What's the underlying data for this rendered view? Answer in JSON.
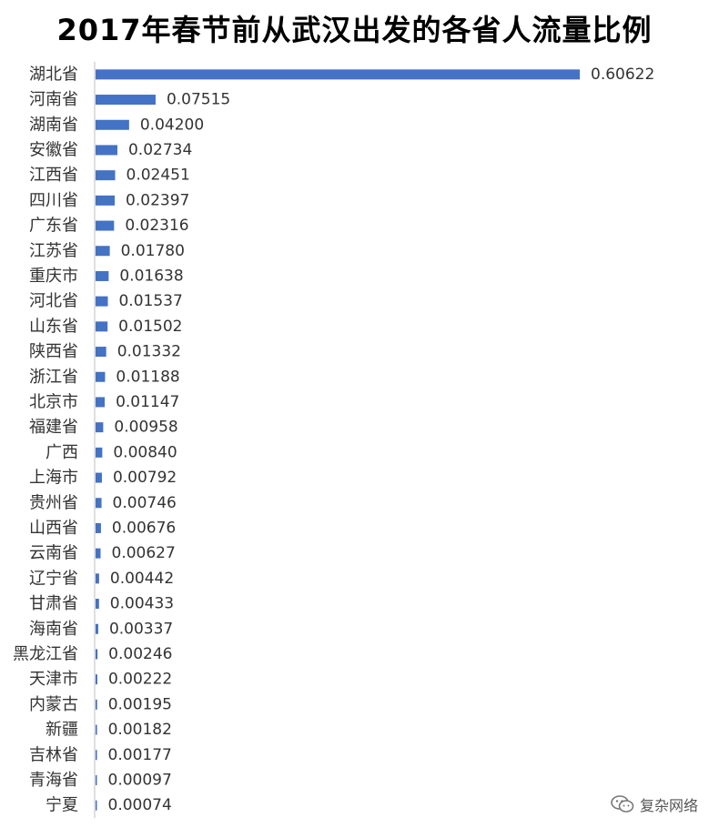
{
  "chart_data": {
    "type": "bar",
    "orientation": "horizontal",
    "title": "2017年春节前从武汉出发的各省人流量比例",
    "categories": [
      "湖北省",
      "河南省",
      "湖南省",
      "安徽省",
      "江西省",
      "四川省",
      "广东省",
      "江苏省",
      "重庆市",
      "河北省",
      "山东省",
      "陕西省",
      "浙江省",
      "北京市",
      "福建省",
      "广西",
      "上海市",
      "贵州省",
      "山西省",
      "云南省",
      "辽宁省",
      "甘肃省",
      "海南省",
      "黑龙江省",
      "天津市",
      "内蒙古",
      "新疆",
      "吉林省",
      "青海省",
      "宁夏"
    ],
    "values": [
      0.60622,
      0.07515,
      0.042,
      0.02734,
      0.02451,
      0.02397,
      0.02316,
      0.0178,
      0.01638,
      0.01537,
      0.01502,
      0.01332,
      0.01188,
      0.01147,
      0.00958,
      0.0084,
      0.00792,
      0.00746,
      0.00676,
      0.00627,
      0.00442,
      0.00433,
      0.00337,
      0.00246,
      0.00222,
      0.00195,
      0.00182,
      0.00177,
      0.00097,
      0.00074
    ],
    "value_labels": [
      "0.60622",
      "0.07515",
      "0.04200",
      "0.02734",
      "0.02451",
      "0.02397",
      "0.02316",
      "0.01780",
      "0.01638",
      "0.01537",
      "0.01502",
      "0.01332",
      "0.01188",
      "0.01147",
      "0.00958",
      "0.00840",
      "0.00792",
      "0.00746",
      "0.00676",
      "0.00627",
      "0.00442",
      "0.00433",
      "0.00337",
      "0.00246",
      "0.00222",
      "0.00195",
      "0.00182",
      "0.00177",
      "0.00097",
      "0.00074"
    ],
    "bar_color": "#4472c4",
    "axis_color": "#bfbfbf",
    "xlim": [
      0,
      0.60622
    ],
    "grid": false,
    "legend": "none"
  },
  "watermark": {
    "text": "复杂网络",
    "icon": "wechat-icon"
  }
}
